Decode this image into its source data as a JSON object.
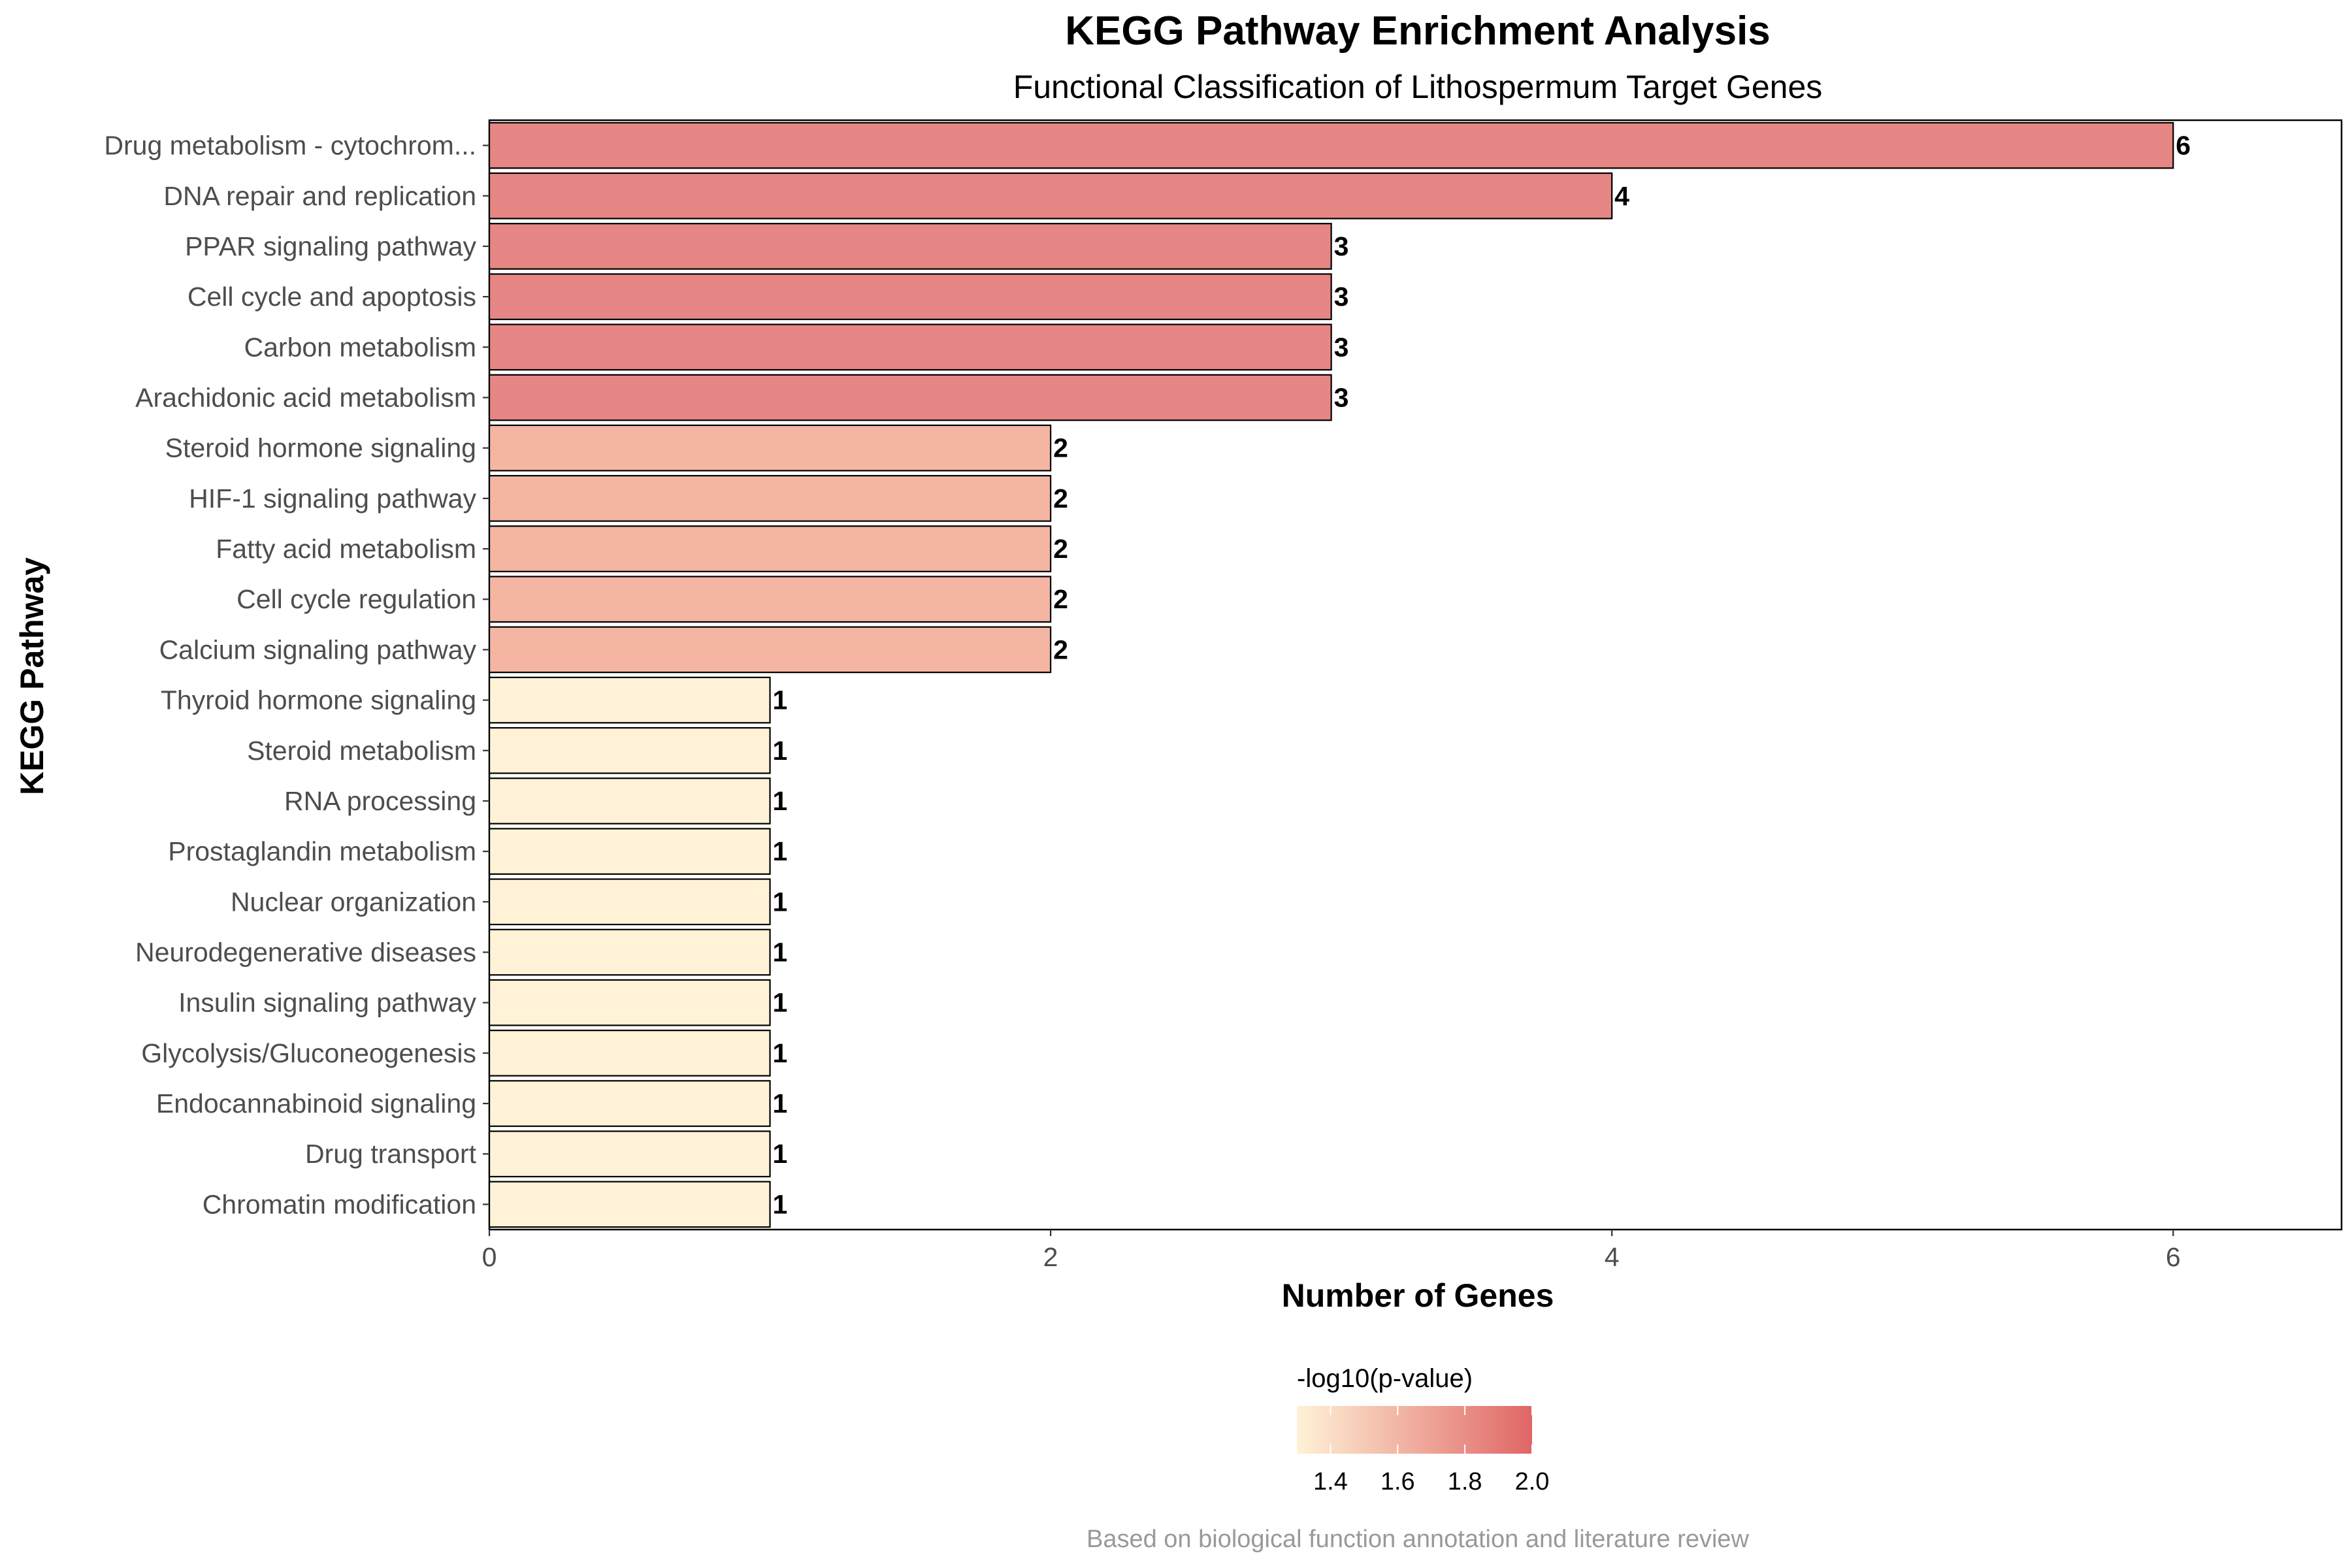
{
  "chart_data": {
    "type": "bar",
    "orientation": "horizontal",
    "title": "KEGG Pathway Enrichment Analysis",
    "subtitle": "Functional Classification of Lithospermum Target Genes",
    "xlabel": "Number of Genes",
    "ylabel": "KEGG Pathway",
    "xlim": [
      0,
      6.6
    ],
    "x_ticks": [
      0,
      2,
      4,
      6
    ],
    "grid": false,
    "categories": [
      "Drug metabolism - cytochrom...",
      "DNA repair and replication",
      "PPAR signaling pathway",
      "Cell cycle and apoptosis",
      "Carbon metabolism",
      "Arachidonic acid metabolism",
      "Steroid hormone signaling",
      "HIF-1 signaling pathway",
      "Fatty acid metabolism",
      "Cell cycle regulation",
      "Calcium signaling pathway",
      "Thyroid hormone signaling",
      "Steroid metabolism",
      "RNA processing",
      "Prostaglandin metabolism",
      "Nuclear organization",
      "Neurodegenerative diseases",
      "Insulin signaling pathway",
      "Glycolysis/Gluconeogenesis",
      "Endocannabinoid signaling",
      "Drug transport",
      "Chromatin modification"
    ],
    "values": [
      6,
      4,
      3,
      3,
      3,
      3,
      2,
      2,
      2,
      2,
      2,
      1,
      1,
      1,
      1,
      1,
      1,
      1,
      1,
      1,
      1,
      1
    ],
    "value_labels": [
      "6",
      "4",
      "3",
      "3",
      "3",
      "3",
      "2",
      "2",
      "2",
      "2",
      "2",
      "1",
      "1",
      "1",
      "1",
      "1",
      "1",
      "1",
      "1",
      "1",
      "1",
      "1"
    ],
    "color_values": [
      2.0,
      2.0,
      2.0,
      2.0,
      2.0,
      2.0,
      1.6,
      1.6,
      1.6,
      1.6,
      1.6,
      1.3,
      1.3,
      1.3,
      1.3,
      1.3,
      1.3,
      1.3,
      1.3,
      1.3,
      1.3,
      1.3
    ],
    "legend": {
      "title": "-log10(p-value)",
      "placement": "bottom",
      "range": [
        1.3,
        2.0
      ],
      "ticks": [
        1.4,
        1.6,
        1.8,
        2.0
      ],
      "tick_labels": [
        "1.4",
        "1.6",
        "1.8",
        "2.0"
      ],
      "color_low": "#fff2d6",
      "color_high": "#e06666"
    },
    "bar_colors": {
      "high": "#e68785",
      "mid": "#f5b5a3",
      "low": "#fff2d6"
    },
    "caption": "Based on biological function annotation and literature review"
  }
}
